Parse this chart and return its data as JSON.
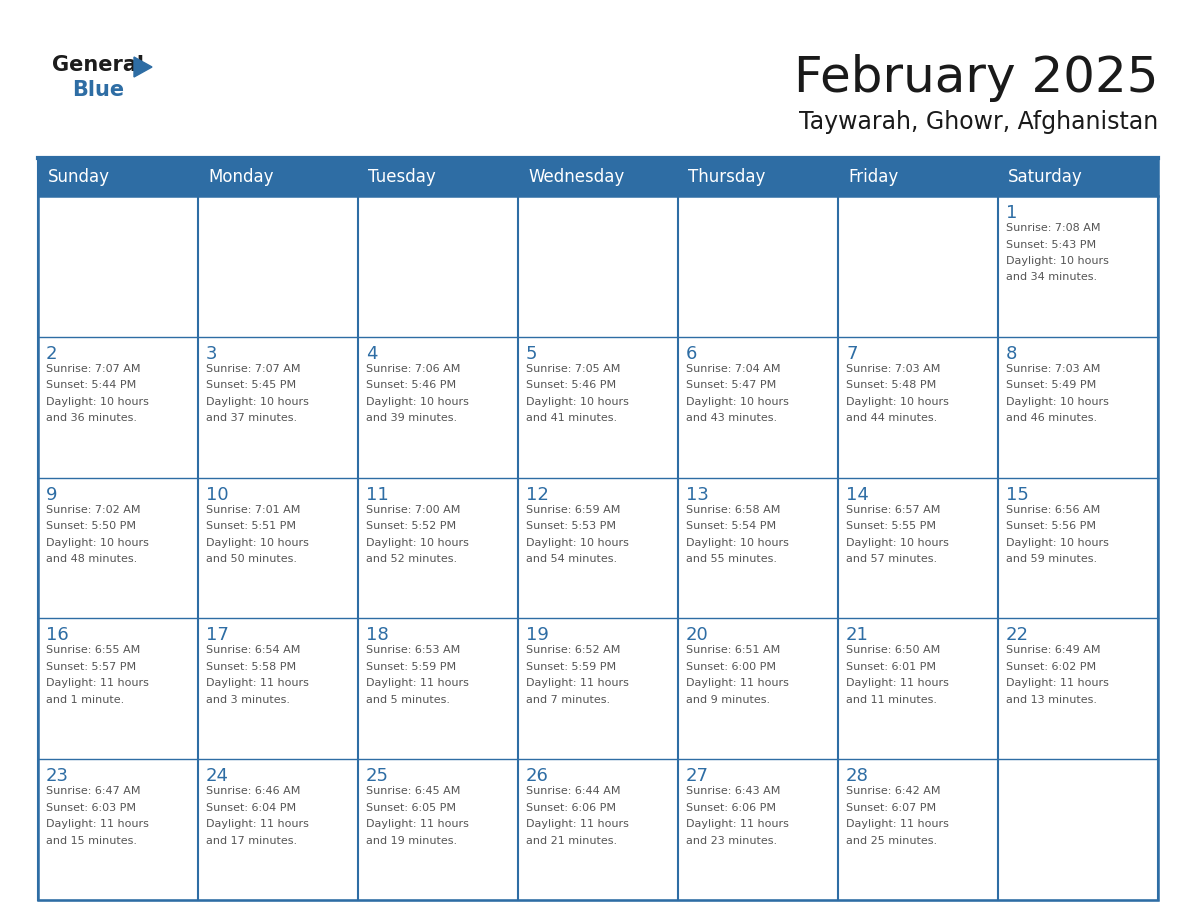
{
  "title": "February 2025",
  "subtitle": "Taywarah, Ghowr, Afghanistan",
  "header_bg": "#2E6DA4",
  "header_text_color": "#FFFFFF",
  "border_color": "#2E6DA4",
  "title_color": "#1a1a1a",
  "subtitle_color": "#1a1a1a",
  "day_num_color": "#2E6DA4",
  "cell_text_color": "#555555",
  "day_headers": [
    "Sunday",
    "Monday",
    "Tuesday",
    "Wednesday",
    "Thursday",
    "Friday",
    "Saturday"
  ],
  "days": [
    {
      "day": 1,
      "col": 6,
      "row": 0,
      "sunrise": "7:08 AM",
      "sunset": "5:43 PM",
      "daylight_line1": "Daylight: 10 hours",
      "daylight_line2": "and 34 minutes."
    },
    {
      "day": 2,
      "col": 0,
      "row": 1,
      "sunrise": "7:07 AM",
      "sunset": "5:44 PM",
      "daylight_line1": "Daylight: 10 hours",
      "daylight_line2": "and 36 minutes."
    },
    {
      "day": 3,
      "col": 1,
      "row": 1,
      "sunrise": "7:07 AM",
      "sunset": "5:45 PM",
      "daylight_line1": "Daylight: 10 hours",
      "daylight_line2": "and 37 minutes."
    },
    {
      "day": 4,
      "col": 2,
      "row": 1,
      "sunrise": "7:06 AM",
      "sunset": "5:46 PM",
      "daylight_line1": "Daylight: 10 hours",
      "daylight_line2": "and 39 minutes."
    },
    {
      "day": 5,
      "col": 3,
      "row": 1,
      "sunrise": "7:05 AM",
      "sunset": "5:46 PM",
      "daylight_line1": "Daylight: 10 hours",
      "daylight_line2": "and 41 minutes."
    },
    {
      "day": 6,
      "col": 4,
      "row": 1,
      "sunrise": "7:04 AM",
      "sunset": "5:47 PM",
      "daylight_line1": "Daylight: 10 hours",
      "daylight_line2": "and 43 minutes."
    },
    {
      "day": 7,
      "col": 5,
      "row": 1,
      "sunrise": "7:03 AM",
      "sunset": "5:48 PM",
      "daylight_line1": "Daylight: 10 hours",
      "daylight_line2": "and 44 minutes."
    },
    {
      "day": 8,
      "col": 6,
      "row": 1,
      "sunrise": "7:03 AM",
      "sunset": "5:49 PM",
      "daylight_line1": "Daylight: 10 hours",
      "daylight_line2": "and 46 minutes."
    },
    {
      "day": 9,
      "col": 0,
      "row": 2,
      "sunrise": "7:02 AM",
      "sunset": "5:50 PM",
      "daylight_line1": "Daylight: 10 hours",
      "daylight_line2": "and 48 minutes."
    },
    {
      "day": 10,
      "col": 1,
      "row": 2,
      "sunrise": "7:01 AM",
      "sunset": "5:51 PM",
      "daylight_line1": "Daylight: 10 hours",
      "daylight_line2": "and 50 minutes."
    },
    {
      "day": 11,
      "col": 2,
      "row": 2,
      "sunrise": "7:00 AM",
      "sunset": "5:52 PM",
      "daylight_line1": "Daylight: 10 hours",
      "daylight_line2": "and 52 minutes."
    },
    {
      "day": 12,
      "col": 3,
      "row": 2,
      "sunrise": "6:59 AM",
      "sunset": "5:53 PM",
      "daylight_line1": "Daylight: 10 hours",
      "daylight_line2": "and 54 minutes."
    },
    {
      "day": 13,
      "col": 4,
      "row": 2,
      "sunrise": "6:58 AM",
      "sunset": "5:54 PM",
      "daylight_line1": "Daylight: 10 hours",
      "daylight_line2": "and 55 minutes."
    },
    {
      "day": 14,
      "col": 5,
      "row": 2,
      "sunrise": "6:57 AM",
      "sunset": "5:55 PM",
      "daylight_line1": "Daylight: 10 hours",
      "daylight_line2": "and 57 minutes."
    },
    {
      "day": 15,
      "col": 6,
      "row": 2,
      "sunrise": "6:56 AM",
      "sunset": "5:56 PM",
      "daylight_line1": "Daylight: 10 hours",
      "daylight_line2": "and 59 minutes."
    },
    {
      "day": 16,
      "col": 0,
      "row": 3,
      "sunrise": "6:55 AM",
      "sunset": "5:57 PM",
      "daylight_line1": "Daylight: 11 hours",
      "daylight_line2": "and 1 minute."
    },
    {
      "day": 17,
      "col": 1,
      "row": 3,
      "sunrise": "6:54 AM",
      "sunset": "5:58 PM",
      "daylight_line1": "Daylight: 11 hours",
      "daylight_line2": "and 3 minutes."
    },
    {
      "day": 18,
      "col": 2,
      "row": 3,
      "sunrise": "6:53 AM",
      "sunset": "5:59 PM",
      "daylight_line1": "Daylight: 11 hours",
      "daylight_line2": "and 5 minutes."
    },
    {
      "day": 19,
      "col": 3,
      "row": 3,
      "sunrise": "6:52 AM",
      "sunset": "5:59 PM",
      "daylight_line1": "Daylight: 11 hours",
      "daylight_line2": "and 7 minutes."
    },
    {
      "day": 20,
      "col": 4,
      "row": 3,
      "sunrise": "6:51 AM",
      "sunset": "6:00 PM",
      "daylight_line1": "Daylight: 11 hours",
      "daylight_line2": "and 9 minutes."
    },
    {
      "day": 21,
      "col": 5,
      "row": 3,
      "sunrise": "6:50 AM",
      "sunset": "6:01 PM",
      "daylight_line1": "Daylight: 11 hours",
      "daylight_line2": "and 11 minutes."
    },
    {
      "day": 22,
      "col": 6,
      "row": 3,
      "sunrise": "6:49 AM",
      "sunset": "6:02 PM",
      "daylight_line1": "Daylight: 11 hours",
      "daylight_line2": "and 13 minutes."
    },
    {
      "day": 23,
      "col": 0,
      "row": 4,
      "sunrise": "6:47 AM",
      "sunset": "6:03 PM",
      "daylight_line1": "Daylight: 11 hours",
      "daylight_line2": "and 15 minutes."
    },
    {
      "day": 24,
      "col": 1,
      "row": 4,
      "sunrise": "6:46 AM",
      "sunset": "6:04 PM",
      "daylight_line1": "Daylight: 11 hours",
      "daylight_line2": "and 17 minutes."
    },
    {
      "day": 25,
      "col": 2,
      "row": 4,
      "sunrise": "6:45 AM",
      "sunset": "6:05 PM",
      "daylight_line1": "Daylight: 11 hours",
      "daylight_line2": "and 19 minutes."
    },
    {
      "day": 26,
      "col": 3,
      "row": 4,
      "sunrise": "6:44 AM",
      "sunset": "6:06 PM",
      "daylight_line1": "Daylight: 11 hours",
      "daylight_line2": "and 21 minutes."
    },
    {
      "day": 27,
      "col": 4,
      "row": 4,
      "sunrise": "6:43 AM",
      "sunset": "6:06 PM",
      "daylight_line1": "Daylight: 11 hours",
      "daylight_line2": "and 23 minutes."
    },
    {
      "day": 28,
      "col": 5,
      "row": 4,
      "sunrise": "6:42 AM",
      "sunset": "6:07 PM",
      "daylight_line1": "Daylight: 11 hours",
      "daylight_line2": "and 25 minutes."
    }
  ]
}
